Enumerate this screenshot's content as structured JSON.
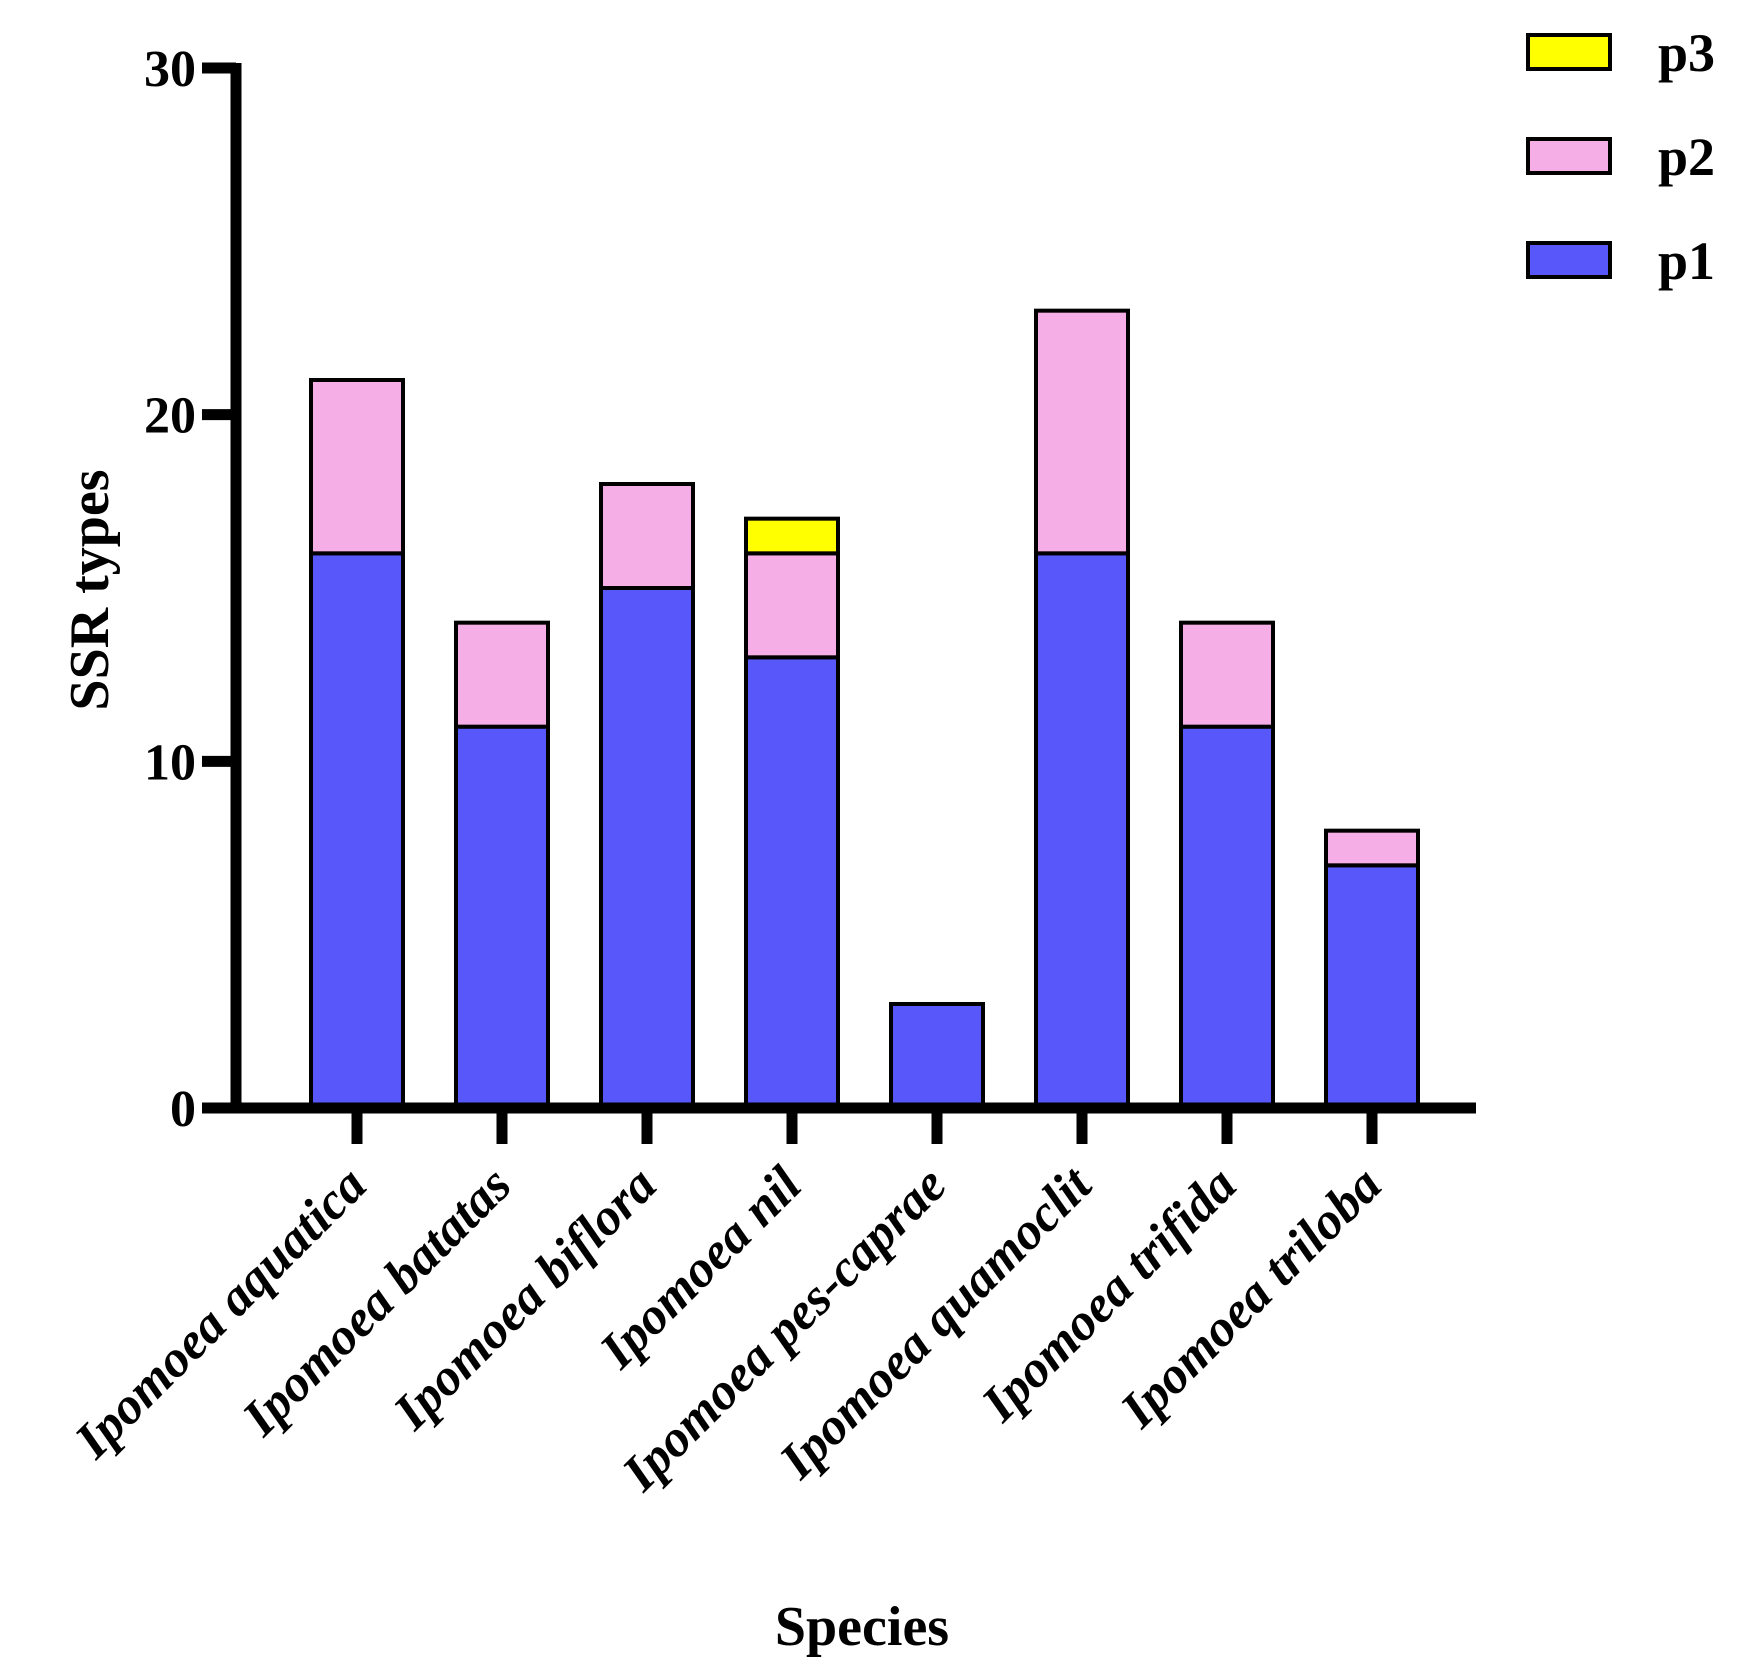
{
  "chart_data": {
    "type": "bar",
    "stacked": true,
    "title": "",
    "xlabel": "Species",
    "ylabel": "SSR types",
    "ylim": [
      0,
      30
    ],
    "yticks": [
      0,
      10,
      20,
      30
    ],
    "categories": [
      "Ipomoea aquatica",
      "Ipomoea batatas",
      "Ipomoea biflora",
      "Ipomoea nil",
      "Ipomoea pes-caprae",
      "Ipomoea quamoclit",
      "Ipomoea trifida",
      "Ipomoea triloba"
    ],
    "series": [
      {
        "name": "p1",
        "color": "#5858fa",
        "values": [
          16,
          11,
          15,
          13,
          3,
          16,
          11,
          7
        ]
      },
      {
        "name": "p2",
        "color": "#f5aee6",
        "values": [
          5,
          3,
          3,
          3,
          0,
          7,
          3,
          1
        ]
      },
      {
        "name": "p3",
        "color": "#ffff00",
        "values": [
          0,
          0,
          0,
          1,
          0,
          0,
          0,
          0
        ]
      }
    ],
    "legend": {
      "position": "top-right",
      "order": [
        "p3",
        "p2",
        "p1"
      ]
    }
  }
}
